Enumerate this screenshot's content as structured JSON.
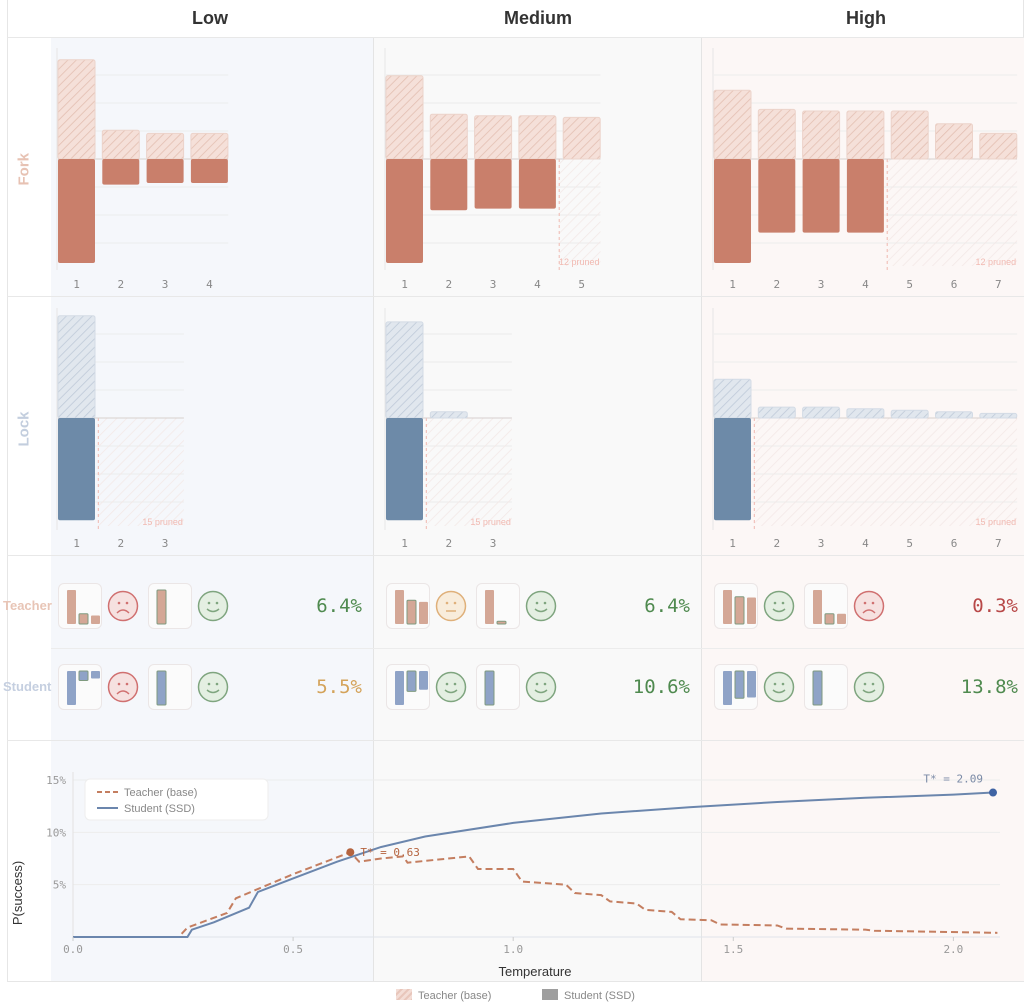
{
  "columns": [
    "Low",
    "Medium",
    "High"
  ],
  "rows": [
    "Fork",
    "Lock"
  ],
  "colors": {
    "teacher": "#c97f6b",
    "student": "#6d8aa8",
    "teacher_light": "#f3ddd6",
    "student_light": "#dde3ea",
    "good": "#4f8a4f",
    "warn": "#d4a35a",
    "bad": "#b84848"
  },
  "fork": {
    "Low": {
      "teacher": [
        0.62,
        0.18,
        0.16,
        0.16
      ],
      "student": [
        0.65,
        0.16,
        0.15,
        0.15
      ],
      "pruned": null,
      "ticks": [
        "1",
        "2",
        "3",
        "4"
      ]
    },
    "Medium": {
      "teacher": [
        0.52,
        0.28,
        0.27,
        0.27,
        0.26
      ],
      "student": [
        0.65,
        0.32,
        0.31,
        0.31,
        0
      ],
      "pruned": "12 pruned",
      "ticks": [
        "1",
        "2",
        "3",
        "4",
        "5"
      ]
    },
    "High": {
      "teacher": [
        0.43,
        0.31,
        0.3,
        0.3,
        0.3,
        0.22,
        0.16
      ],
      "student": [
        0.65,
        0.46,
        0.46,
        0.46,
        0,
        0,
        0
      ],
      "pruned": "12 pruned",
      "ticks": [
        "1",
        "2",
        "3",
        "4",
        "5",
        "6",
        "7"
      ]
    }
  },
  "lock": {
    "Low": {
      "teacher": [
        0.66,
        0,
        0
      ],
      "student": [
        0.66,
        0,
        0
      ],
      "pruned": "15 pruned",
      "ticks": [
        "1",
        "2",
        "3"
      ]
    },
    "Medium": {
      "teacher": [
        0.62,
        0.04,
        0
      ],
      "student": [
        0.66,
        0,
        0
      ],
      "pruned": "15 pruned",
      "ticks": [
        "1",
        "2",
        "3"
      ]
    },
    "High": {
      "teacher": [
        0.25,
        0.07,
        0.07,
        0.06,
        0.05,
        0.04,
        0.03
      ],
      "student": [
        0.66,
        0,
        0,
        0,
        0,
        0,
        0
      ],
      "pruned": "15 pruned",
      "ticks": [
        "1",
        "2",
        "3",
        "4",
        "5",
        "6",
        "7"
      ]
    }
  },
  "summary": {
    "row_labels": [
      "Teacher",
      "Student"
    ],
    "Low": {
      "teacher": {
        "faces": [
          "sad",
          "happy"
        ],
        "value": "6.4%",
        "tone": "good"
      },
      "student": {
        "faces": [
          "sad",
          "happy"
        ],
        "value": "5.5%",
        "tone": "warn"
      }
    },
    "Medium": {
      "teacher": {
        "faces": [
          "neutral",
          "happy"
        ],
        "value": "6.4%",
        "tone": "good"
      },
      "student": {
        "faces": [
          "happy",
          "happy"
        ],
        "value": "10.6%",
        "tone": "good"
      }
    },
    "High": {
      "teacher": {
        "faces": [
          "happy",
          "sad"
        ],
        "value": "0.3%",
        "tone": "bad"
      },
      "student": {
        "faces": [
          "happy",
          "happy"
        ],
        "value": "13.8%",
        "tone": "good"
      }
    }
  },
  "chart_data": {
    "type": "line",
    "xlabel": "Temperature",
    "ylabel": "P(success)",
    "xlim": [
      0,
      2.12
    ],
    "ylim": [
      0,
      15
    ],
    "xticks": [
      "0.0",
      "0.5",
      "1.0",
      "1.5",
      "2.0"
    ],
    "yticks": [
      "5%",
      "10%",
      "15%"
    ],
    "series": [
      {
        "name": "Teacher (base)",
        "style": "dashed",
        "x": [
          0,
          0.24,
          0.26,
          0.35,
          0.37,
          0.5,
          0.63,
          0.65,
          0.7,
          0.75,
          0.76,
          0.9,
          0.92,
          1.0,
          1.02,
          1.12,
          1.14,
          1.2,
          1.22,
          1.28,
          1.3,
          1.36,
          1.38,
          1.45,
          1.47,
          1.6,
          1.62,
          1.8,
          1.82,
          2.1
        ],
        "y": [
          0,
          0,
          0.9,
          2.3,
          3.7,
          6,
          8.1,
          7.2,
          7.5,
          7.7,
          7.1,
          7.7,
          6.5,
          6.5,
          5.3,
          5.0,
          4.2,
          4.0,
          3.4,
          3.2,
          2.6,
          2.4,
          1.7,
          1.6,
          1.2,
          1.1,
          0.8,
          0.7,
          0.6,
          0.4
        ]
      },
      {
        "name": "Student (SSD)",
        "style": "solid",
        "x": [
          0,
          0.26,
          0.27,
          0.32,
          0.4,
          0.42,
          0.5,
          0.6,
          0.7,
          0.8,
          1.0,
          1.2,
          1.4,
          1.6,
          1.8,
          2.0,
          2.09
        ],
        "y": [
          0,
          0,
          0.7,
          1.4,
          2.8,
          4.3,
          5.6,
          7.2,
          8.6,
          9.6,
          10.9,
          11.8,
          12.4,
          12.9,
          13.3,
          13.6,
          13.8
        ]
      }
    ],
    "annotations": [
      {
        "label": "T* = 0.63",
        "x": 0.63,
        "y": 8.1,
        "series": "Teacher (base)"
      },
      {
        "label": "T* = 2.09",
        "x": 2.09,
        "y": 13.8,
        "series": "Student (SSD)"
      }
    ],
    "legend": "top-left"
  },
  "bottom_legend": [
    "Teacher (base)",
    "Student (SSD)"
  ]
}
